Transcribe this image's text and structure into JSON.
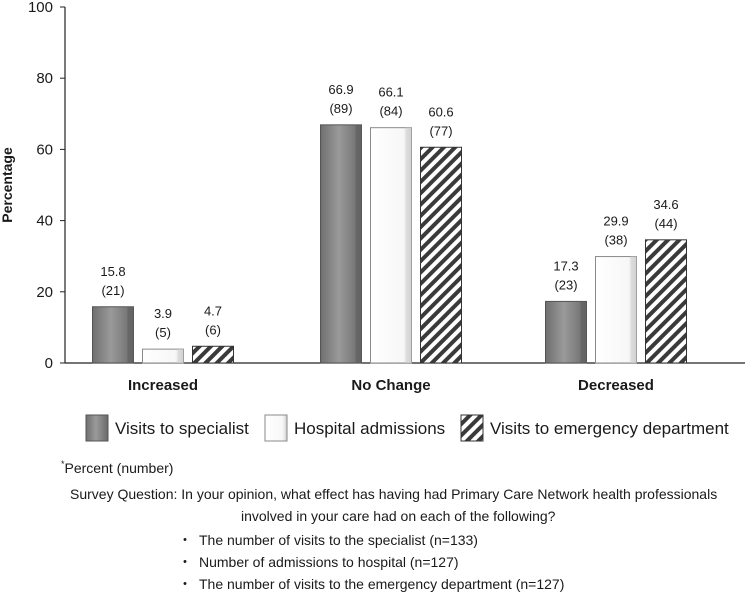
{
  "chart_data": {
    "type": "bar",
    "ylabel": "Percentage",
    "xlabel": "",
    "ylim": [
      0,
      100
    ],
    "yticks": [
      0,
      20,
      40,
      60,
      80,
      100
    ],
    "categories": [
      "Increased",
      "No Change",
      "Decreased"
    ],
    "series": [
      {
        "name": "Visits to specialist",
        "values": [
          15.8,
          66.9,
          17.3
        ],
        "counts": [
          21,
          89,
          23
        ],
        "fill": "#8c8c8c",
        "pattern": "solid"
      },
      {
        "name": "Hospital admissions",
        "values": [
          3.9,
          66.1,
          29.9
        ],
        "counts": [
          5,
          84,
          38
        ],
        "fill": "#ffffff",
        "pattern": "solid"
      },
      {
        "name": "Visits to emergency department",
        "values": [
          4.7,
          60.6,
          34.6
        ],
        "counts": [
          6,
          77,
          44
        ],
        "fill": "#ffffff",
        "pattern": "hatch"
      }
    ],
    "legend_position": "bottom",
    "grid": false
  },
  "footnotes": {
    "marker": "*",
    "percent_note": "Percent (number)",
    "question_lead": "Survey Question: In your opinion, what effect has having had Primary Care Network health professionals",
    "question_cont": "involved in your care had on each of the following?",
    "bullet_char": "・",
    "bullets": [
      "The number of visits to the specialist (n=133)",
      "Number of admissions to hospital (n=127)",
      "The number of visits to the emergency department (n=127)"
    ]
  }
}
